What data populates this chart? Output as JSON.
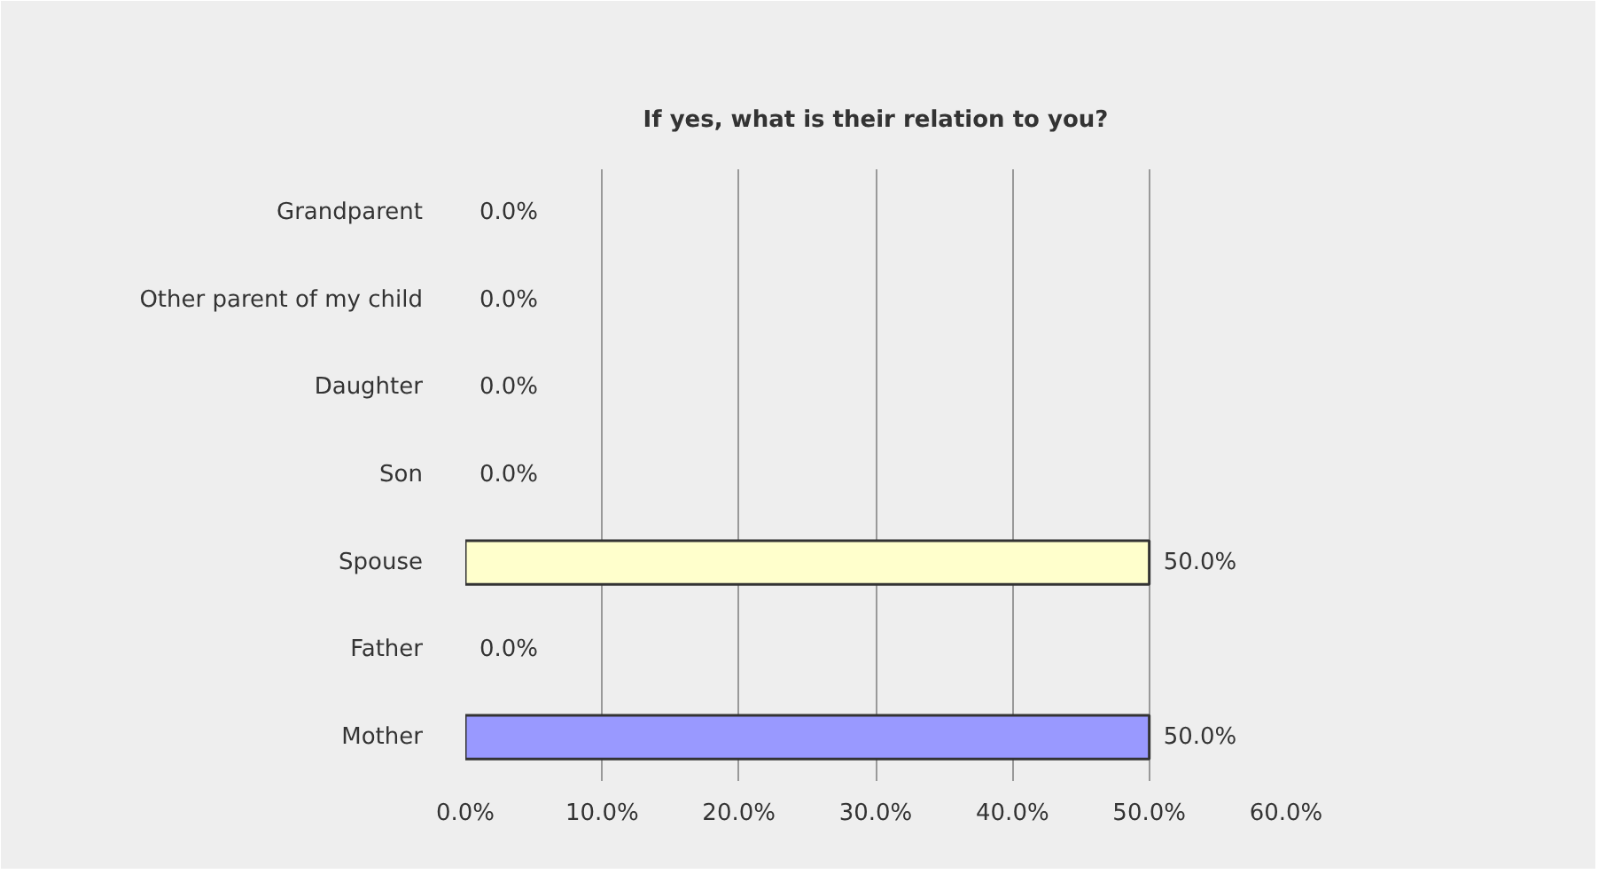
{
  "chart_data": {
    "type": "bar",
    "orientation": "horizontal",
    "title": "If yes, what is their relation to you?",
    "categories": [
      "Grandparent",
      "Other parent of my child",
      "Daughter",
      "Son",
      "Spouse",
      "Father",
      "Mother"
    ],
    "values": [
      0,
      0,
      0,
      0,
      50,
      0,
      50
    ],
    "colors": [
      null,
      null,
      null,
      null,
      "#ffffcc",
      null,
      "#9999ff"
    ],
    "value_labels": [
      "0.0%",
      "0.0%",
      "0.0%",
      "0.0%",
      "50.0%",
      "0.0%",
      "50.0%"
    ],
    "xlim": [
      0,
      60
    ],
    "xticks": [
      {
        "value": 0,
        "label": "0.0%"
      },
      {
        "value": 10,
        "label": "10.0%"
      },
      {
        "value": 20,
        "label": "20.0%"
      },
      {
        "value": 30,
        "label": "30.0%"
      },
      {
        "value": 40,
        "label": "40.0%"
      },
      {
        "value": 50,
        "label": "50.0%"
      },
      {
        "value": 60,
        "label": "60.0%"
      }
    ],
    "grid": "x"
  }
}
